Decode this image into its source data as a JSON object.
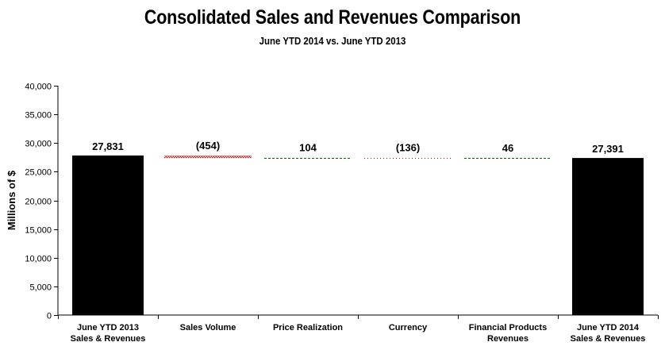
{
  "chart_data": {
    "type": "bar",
    "subtype": "waterfall",
    "title": "Consolidated Sales and Revenues Comparison",
    "subtitle": "June YTD 2014 vs. June YTD 2013",
    "xlabel": "",
    "ylabel": "Millions of $",
    "ylim": [
      0,
      40000
    ],
    "yticks": [
      0,
      5000,
      10000,
      15000,
      20000,
      25000,
      30000,
      35000,
      40000
    ],
    "ytick_labels": [
      "0",
      "5,000",
      "10,000",
      "15,000",
      "20,000",
      "25,000",
      "30,000",
      "35,000",
      "40,000"
    ],
    "grid": false,
    "categories": [
      [
        "June YTD 2013",
        "Sales & Revenues"
      ],
      [
        "Sales Volume"
      ],
      [
        "Price Realization"
      ],
      [
        "Currency"
      ],
      [
        "Financial Products",
        "Revenues"
      ],
      [
        "June YTD 2014",
        "Sales & Revenues"
      ]
    ],
    "items": [
      {
        "kind": "total",
        "value": 27831,
        "label": "27,831",
        "color": "#000000"
      },
      {
        "kind": "delta",
        "value": -454,
        "start": 27831,
        "label": "(454)",
        "color": "#c00000",
        "style": "hatched"
      },
      {
        "kind": "delta",
        "value": 104,
        "start": 27377,
        "label": "104",
        "color": "#006400",
        "style": "dashed"
      },
      {
        "kind": "delta",
        "value": -136,
        "start": 27481,
        "label": "(136)",
        "color": "#c00000",
        "style": "dotted"
      },
      {
        "kind": "delta",
        "value": 46,
        "start": 27345,
        "label": "46",
        "color": "#006400",
        "style": "dashed"
      },
      {
        "kind": "total",
        "value": 27391,
        "label": "27,391",
        "color": "#000000"
      }
    ]
  }
}
